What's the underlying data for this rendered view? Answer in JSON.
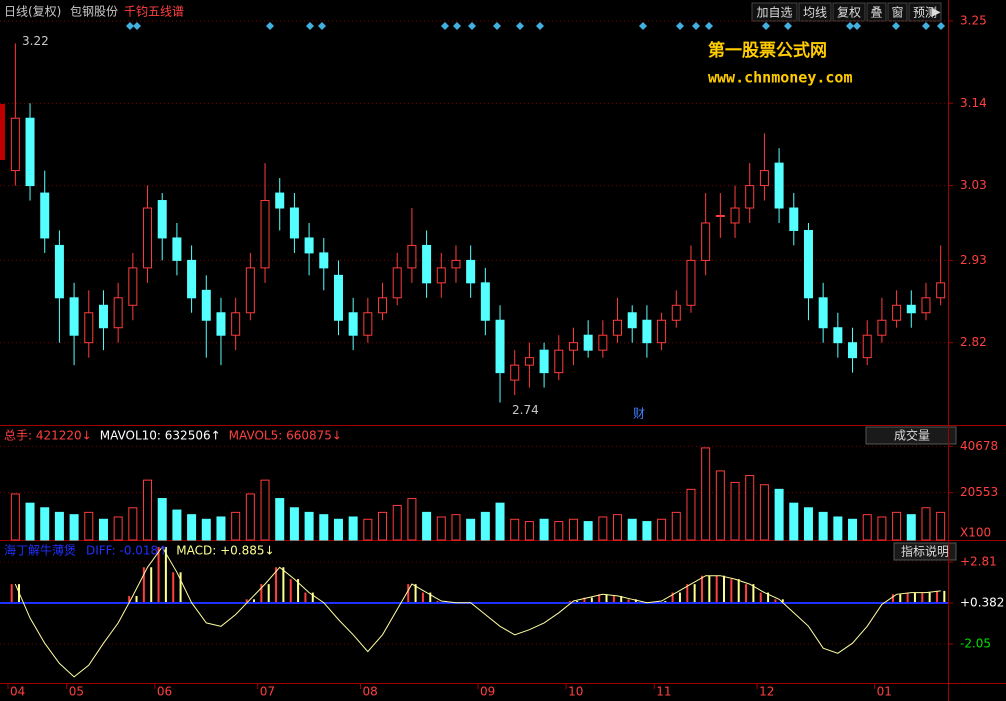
{
  "header": {
    "period": "日线(复权)",
    "stock": "包钢股份",
    "indicator": "千钧五线谱"
  },
  "toolbar": [
    "加自选",
    "均线",
    "复权",
    "叠",
    "窗",
    "预测"
  ],
  "watermark": {
    "title": "第一股票公式网",
    "url": "www.chnmoney.com"
  },
  "event_label": "财",
  "chart_data": [
    {
      "type": "candlestick",
      "up_color": "#ff3c3c",
      "down_color": "#54ffff",
      "grid": true,
      "ylim": [
        2.71,
        3.27
      ],
      "yticks": [
        2.82,
        2.93,
        3.03,
        3.14,
        3.25
      ],
      "series": [
        {
          "open": [
            3.05,
            3.12,
            3.02,
            2.95,
            2.88,
            2.82,
            2.87,
            2.84,
            2.87,
            2.92,
            3.01,
            2.96,
            2.93,
            2.89,
            2.86,
            2.83,
            2.86,
            2.92,
            3.02,
            3.0,
            2.96,
            2.94,
            2.91,
            2.86,
            2.83,
            2.86,
            2.88,
            2.92,
            2.95,
            2.9,
            2.92,
            2.93,
            2.9,
            2.85,
            2.77,
            2.79,
            2.81,
            2.78,
            2.81,
            2.83,
            2.81,
            2.83,
            2.86,
            2.85,
            2.82,
            2.85,
            2.87,
            2.93,
            2.99,
            2.98,
            3.0,
            3.03,
            3.06,
            3.0,
            2.97,
            2.88,
            2.84,
            2.82,
            2.8,
            2.83,
            2.85,
            2.87,
            2.86,
            2.88
          ],
          "high": [
            3.22,
            3.14,
            3.05,
            2.97,
            2.9,
            2.89,
            2.89,
            2.9,
            2.94,
            3.03,
            3.02,
            2.98,
            2.95,
            2.91,
            2.88,
            2.88,
            2.94,
            3.06,
            3.04,
            3.02,
            2.98,
            2.96,
            2.93,
            2.88,
            2.88,
            2.9,
            2.94,
            3.0,
            2.97,
            2.94,
            2.95,
            2.95,
            2.92,
            2.87,
            2.81,
            2.82,
            2.82,
            2.83,
            2.84,
            2.85,
            2.85,
            2.88,
            2.87,
            2.87,
            2.86,
            2.89,
            2.95,
            3.02,
            3.02,
            3.03,
            3.06,
            3.1,
            3.08,
            3.02,
            2.98,
            2.9,
            2.86,
            2.84,
            2.85,
            2.88,
            2.89,
            2.89,
            2.9,
            2.95
          ],
          "low": [
            3.03,
            3.01,
            2.94,
            2.82,
            2.79,
            2.8,
            2.81,
            2.82,
            2.85,
            2.9,
            2.93,
            2.91,
            2.86,
            2.8,
            2.79,
            2.81,
            2.85,
            2.9,
            2.97,
            2.94,
            2.91,
            2.89,
            2.83,
            2.81,
            2.82,
            2.85,
            2.87,
            2.9,
            2.88,
            2.88,
            2.9,
            2.88,
            2.83,
            2.74,
            2.75,
            2.76,
            2.76,
            2.77,
            2.79,
            2.8,
            2.8,
            2.82,
            2.82,
            2.8,
            2.81,
            2.84,
            2.86,
            2.91,
            2.96,
            2.96,
            2.98,
            3.01,
            2.98,
            2.95,
            2.85,
            2.82,
            2.8,
            2.78,
            2.79,
            2.82,
            2.84,
            2.84,
            2.85,
            2.87
          ],
          "close": [
            3.12,
            3.03,
            2.96,
            2.88,
            2.83,
            2.86,
            2.84,
            2.88,
            2.92,
            3.0,
            2.96,
            2.93,
            2.88,
            2.85,
            2.83,
            2.86,
            2.92,
            3.01,
            3.0,
            2.96,
            2.94,
            2.92,
            2.85,
            2.83,
            2.86,
            2.88,
            2.92,
            2.95,
            2.9,
            2.92,
            2.93,
            2.9,
            2.85,
            2.78,
            2.79,
            2.8,
            2.78,
            2.81,
            2.82,
            2.81,
            2.83,
            2.85,
            2.84,
            2.82,
            2.85,
            2.87,
            2.93,
            2.98,
            2.99,
            3.0,
            3.03,
            3.05,
            3.0,
            2.97,
            2.88,
            2.84,
            2.82,
            2.8,
            2.83,
            2.85,
            2.87,
            2.86,
            2.88,
            2.9
          ]
        }
      ]
    },
    {
      "type": "bar",
      "title": "成交量",
      "unit_label": "X100",
      "grid": true,
      "readouts": [
        "总手: 421220↓",
        "MAVOL10: 632506↑",
        "MAVOL5: 660875↓"
      ],
      "ylim": [
        0,
        48640
      ],
      "yticks": [
        20553,
        40678
      ],
      "values": [
        20000,
        16000,
        14000,
        12000,
        11000,
        12000,
        9000,
        10000,
        14000,
        26000,
        18000,
        13000,
        11000,
        9000,
        10000,
        12000,
        20000,
        26000,
        18000,
        14000,
        12000,
        11000,
        9000,
        10000,
        9000,
        12000,
        15000,
        18000,
        12000,
        10000,
        11000,
        9000,
        12000,
        16000,
        9000,
        8000,
        9000,
        8000,
        9000,
        8000,
        10000,
        11000,
        9000,
        8000,
        9000,
        12000,
        22000,
        40000,
        30000,
        25000,
        28000,
        24000,
        22000,
        16000,
        14000,
        12000,
        10000,
        9000,
        11000,
        10000,
        12000,
        11000,
        14000,
        12000
      ]
    },
    {
      "type": "macd",
      "title": "指标说明",
      "name": "海丁解牛薄煲",
      "readouts": [
        "DIFF: -0.018↑",
        "MACD: +0.885↓"
      ],
      "line_color": "#ffffa0",
      "base_color": "#2030ff",
      "bar_colors": [
        "#ff4040",
        "#ffff90"
      ],
      "ylim": [
        -4.36,
        3.82
      ],
      "yticks": [
        {
          "value": 2.81,
          "label": "+2.81"
        },
        {
          "value": 0.382,
          "label": "+0.382"
        },
        {
          "value": -2.05,
          "label": "-2.05"
        }
      ],
      "ytick_colors": [
        "#ff4040",
        "#ffffff",
        "#00e000"
      ],
      "xlim": [
        0,
        64
      ],
      "xticks": [
        {
          "value": 0,
          "label": "04"
        },
        {
          "value": 4,
          "label": "05"
        },
        {
          "value": 10,
          "label": "06"
        },
        {
          "value": 17,
          "label": "07"
        },
        {
          "value": 24,
          "label": "08"
        },
        {
          "value": 32,
          "label": "09"
        },
        {
          "value": 38,
          "label": "10"
        },
        {
          "value": 44,
          "label": "11"
        },
        {
          "value": 51,
          "label": "12"
        },
        {
          "value": 59,
          "label": "01"
        }
      ],
      "values": [
        1.5,
        -0.5,
        -2.0,
        -3.2,
        -4.0,
        -3.3,
        -2.0,
        -0.8,
        0.8,
        2.5,
        3.7,
        2.2,
        0.4,
        -0.8,
        -1.0,
        -0.3,
        0.6,
        1.5,
        2.5,
        1.8,
        1.0,
        0.4,
        -0.6,
        -1.5,
        -2.5,
        -1.5,
        0.0,
        1.5,
        1.0,
        0.5,
        0.4,
        0.4,
        -0.3,
        -1.0,
        -1.5,
        -1.2,
        -0.8,
        -0.2,
        0.5,
        0.7,
        0.9,
        0.8,
        0.6,
        0.4,
        0.5,
        1.0,
        1.5,
        2.0,
        2.0,
        1.8,
        1.5,
        1.0,
        0.6,
        -0.2,
        -1.0,
        -2.3,
        -2.6,
        -2.0,
        -1.0,
        0.3,
        0.9,
        1.0,
        1.0,
        1.1
      ]
    }
  ]
}
